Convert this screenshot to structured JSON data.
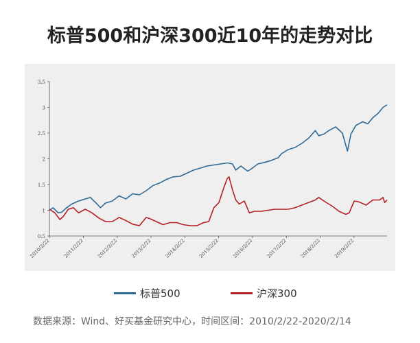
{
  "chart_data": {
    "type": "line",
    "title": "标普500和沪深300近10年的走势对比",
    "xlabel": "",
    "ylabel": "",
    "x_ticks": [
      "2010/2/22",
      "2011/2/22",
      "2012/2/22",
      "2013/2/22",
      "2014/2/22",
      "2015/2/22",
      "2016/2/22",
      "2017/2/22",
      "2018/2/22",
      "2019/2/22"
    ],
    "y_ticks": [
      "0.5",
      "1",
      "1.5",
      "2",
      "2.5",
      "3",
      "3.5"
    ],
    "ylim": [
      0.5,
      3.5
    ],
    "xlim": [
      2010.14,
      2020.12
    ],
    "grid": false,
    "legend_position": "bottom",
    "series": [
      {
        "name": "标普500",
        "color": "#2e6a95",
        "x": [
          2010.14,
          2010.25,
          2010.4,
          2010.5,
          2010.65,
          2010.8,
          2011.0,
          2011.15,
          2011.35,
          2011.55,
          2011.65,
          2011.8,
          2012.0,
          2012.2,
          2012.4,
          2012.6,
          2012.8,
          2013.0,
          2013.2,
          2013.4,
          2013.6,
          2013.8,
          2014.0,
          2014.2,
          2014.4,
          2014.6,
          2014.8,
          2015.0,
          2015.2,
          2015.4,
          2015.55,
          2015.65,
          2015.8,
          2016.0,
          2016.1,
          2016.3,
          2016.5,
          2016.7,
          2016.9,
          2017.0,
          2017.2,
          2017.4,
          2017.6,
          2017.8,
          2018.0,
          2018.1,
          2018.25,
          2018.4,
          2018.6,
          2018.8,
          2018.95,
          2019.05,
          2019.2,
          2019.4,
          2019.55,
          2019.7,
          2019.85,
          2020.0,
          2020.12
        ],
        "y": [
          1.0,
          1.05,
          0.95,
          0.96,
          1.05,
          1.12,
          1.18,
          1.21,
          1.25,
          1.12,
          1.05,
          1.14,
          1.18,
          1.28,
          1.22,
          1.32,
          1.3,
          1.38,
          1.48,
          1.53,
          1.6,
          1.65,
          1.66,
          1.72,
          1.78,
          1.82,
          1.86,
          1.88,
          1.9,
          1.92,
          1.9,
          1.78,
          1.86,
          1.76,
          1.8,
          1.9,
          1.93,
          1.97,
          2.02,
          2.1,
          2.18,
          2.22,
          2.3,
          2.4,
          2.55,
          2.45,
          2.48,
          2.55,
          2.62,
          2.5,
          2.15,
          2.48,
          2.65,
          2.72,
          2.68,
          2.8,
          2.88,
          3.0,
          3.05
        ]
      },
      {
        "name": "沪深300",
        "color": "#b52025",
        "x": [
          2010.14,
          2010.3,
          2010.45,
          2010.55,
          2010.7,
          2010.85,
          2011.0,
          2011.2,
          2011.4,
          2011.6,
          2011.8,
          2012.0,
          2012.2,
          2012.4,
          2012.6,
          2012.8,
          2013.0,
          2013.1,
          2013.3,
          2013.5,
          2013.7,
          2013.9,
          2014.1,
          2014.3,
          2014.5,
          2014.7,
          2014.85,
          2015.0,
          2015.15,
          2015.3,
          2015.4,
          2015.45,
          2015.55,
          2015.65,
          2015.75,
          2015.9,
          2016.05,
          2016.2,
          2016.4,
          2016.6,
          2016.8,
          2017.0,
          2017.2,
          2017.4,
          2017.6,
          2017.8,
          2018.0,
          2018.1,
          2018.3,
          2018.5,
          2018.7,
          2018.9,
          2019.0,
          2019.15,
          2019.3,
          2019.5,
          2019.7,
          2019.9,
          2020.0,
          2020.05,
          2020.12
        ],
        "y": [
          1.02,
          0.95,
          0.82,
          0.88,
          1.02,
          1.05,
          0.95,
          1.02,
          0.95,
          0.85,
          0.78,
          0.78,
          0.86,
          0.8,
          0.73,
          0.7,
          0.86,
          0.84,
          0.78,
          0.72,
          0.76,
          0.76,
          0.72,
          0.7,
          0.7,
          0.76,
          0.78,
          1.05,
          1.15,
          1.45,
          1.62,
          1.65,
          1.4,
          1.2,
          1.12,
          1.18,
          0.95,
          0.98,
          0.98,
          1.0,
          1.02,
          1.02,
          1.02,
          1.05,
          1.1,
          1.15,
          1.2,
          1.25,
          1.16,
          1.08,
          0.98,
          0.92,
          0.95,
          1.18,
          1.16,
          1.1,
          1.2,
          1.2,
          1.25,
          1.15,
          1.2
        ]
      }
    ]
  },
  "footer": {
    "source": "数据来源：Wind、好买基金研究中心，时间区间：2010/2/22-2020/2/14"
  }
}
